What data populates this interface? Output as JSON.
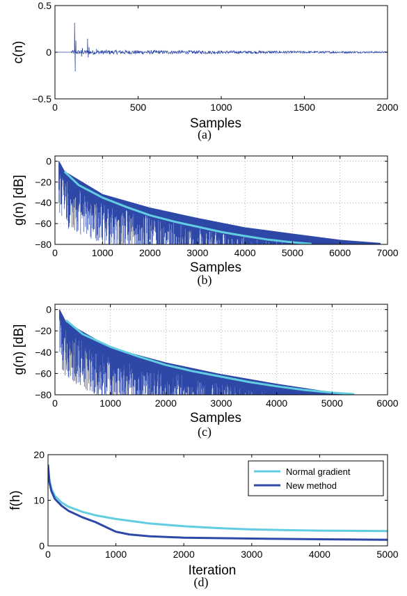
{
  "colors": {
    "dark_series": "#2e48a8",
    "light_series": "#62cde0",
    "grid": "#9a9a9a"
  },
  "chart_data": [
    {
      "type": "line",
      "caption": "(a)",
      "xlabel": "Samples",
      "ylabel": "c(n)",
      "xlim": [
        0,
        2000
      ],
      "ylim": [
        -0.5,
        0.5
      ],
      "xticks": [
        0,
        500,
        1000,
        1500,
        2000
      ],
      "yticks": [
        -0.5,
        0,
        0.5
      ],
      "ytick_labels": [
        "−0.5",
        "0",
        "0.5"
      ],
      "grid": false,
      "series": [
        {
          "color": "#2e48a8",
          "kind": "signal",
          "spikes": [
            [
              118,
              0.31
            ],
            [
              122,
              -0.2
            ],
            [
              126,
              0.12
            ],
            [
              160,
              -0.04
            ],
            [
              165,
              0.04
            ],
            [
              196,
              0.14
            ],
            [
              200,
              -0.05
            ],
            [
              205,
              0.05
            ],
            [
              250,
              0.03
            ]
          ],
          "noise_x": [
            0,
            2000
          ],
          "noise_amp_start": 0.025,
          "noise_amp_end": 0.008
        }
      ]
    },
    {
      "type": "line",
      "caption": "(b)",
      "xlabel": "Samples",
      "ylabel": "g(n) [dB]",
      "xlim": [
        0,
        7000
      ],
      "ylim": [
        -80,
        5
      ],
      "xticks": [
        0,
        1000,
        2000,
        3000,
        4000,
        5000,
        6000,
        7000
      ],
      "yticks": [
        -80,
        -60,
        -40,
        -20,
        0
      ],
      "ytick_labels": [
        "−80",
        "−60",
        "−40",
        "−20",
        "0"
      ],
      "grid": true,
      "series": [
        {
          "color": "#2e48a8",
          "kind": "decay_noise",
          "x_start": 80,
          "x_end": 6850,
          "envelope": [
            [
              80,
              0
            ],
            [
              200,
              -10
            ],
            [
              1000,
              -32
            ],
            [
              2000,
              -45
            ],
            [
              3000,
              -55
            ],
            [
              4000,
              -64
            ],
            [
              5000,
              -70
            ],
            [
              6000,
              -76
            ],
            [
              6850,
              -79
            ]
          ]
        },
        {
          "color": "#62cde0",
          "kind": "curve",
          "points": [
            [
              200,
              -10
            ],
            [
              500,
              -23
            ],
            [
              1000,
              -35
            ],
            [
              1500,
              -44
            ],
            [
              2000,
              -52
            ],
            [
              2500,
              -58
            ],
            [
              3000,
              -63
            ],
            [
              3500,
              -68
            ],
            [
              4000,
              -72
            ],
            [
              4500,
              -75.5
            ],
            [
              5000,
              -78
            ],
            [
              5400,
              -79.5
            ]
          ]
        }
      ]
    },
    {
      "type": "line",
      "caption": "(c)",
      "xlabel": "Samples",
      "ylabel": "g(n) [dB]",
      "xlim": [
        0,
        6000
      ],
      "ylim": [
        -80,
        5
      ],
      "xticks": [
        0,
        1000,
        2000,
        3000,
        4000,
        5000,
        6000
      ],
      "yticks": [
        -80,
        -60,
        -40,
        -20,
        0
      ],
      "ytick_labels": [
        "−80",
        "−60",
        "−40",
        "−20",
        "0"
      ],
      "grid": true,
      "series": [
        {
          "color": "#2e48a8",
          "kind": "decay_noise",
          "x_start": 80,
          "x_end": 5300,
          "envelope": [
            [
              80,
              0
            ],
            [
              200,
              -12
            ],
            [
              1000,
              -36
            ],
            [
              2000,
              -50
            ],
            [
              3000,
              -61
            ],
            [
              4000,
              -70
            ],
            [
              5000,
              -78
            ],
            [
              5300,
              -80
            ]
          ]
        },
        {
          "color": "#62cde0",
          "kind": "curve",
          "points": [
            [
              200,
              -10
            ],
            [
              500,
              -23
            ],
            [
              1000,
              -35
            ],
            [
              1500,
              -44
            ],
            [
              2000,
              -52
            ],
            [
              2500,
              -58
            ],
            [
              3000,
              -63
            ],
            [
              3500,
              -68
            ],
            [
              4000,
              -72
            ],
            [
              4500,
              -75.5
            ],
            [
              5000,
              -78
            ],
            [
              5400,
              -79.5
            ]
          ]
        }
      ]
    },
    {
      "type": "line",
      "caption": "(d)",
      "xlabel": "Iteration",
      "ylabel": "f(h)",
      "xlim": [
        0,
        5000
      ],
      "ylim": [
        0,
        20
      ],
      "xticks": [
        0,
        1000,
        2000,
        3000,
        4000,
        5000
      ],
      "yticks": [
        0,
        10,
        20
      ],
      "ytick_labels": [
        "0",
        "10",
        "20"
      ],
      "grid": false,
      "legend_position": "top-right",
      "series": [
        {
          "name": "Normal gradient",
          "color": "#62cde0",
          "kind": "curve",
          "points": [
            [
              0,
              17.5
            ],
            [
              20,
              14.5
            ],
            [
              50,
              12.5
            ],
            [
              100,
              11
            ],
            [
              200,
              9.5
            ],
            [
              300,
              8.6
            ],
            [
              500,
              7.5
            ],
            [
              700,
              6.7
            ],
            [
              1000,
              5.9
            ],
            [
              1500,
              4.9
            ],
            [
              2000,
              4.3
            ],
            [
              2500,
              3.9
            ],
            [
              3000,
              3.6
            ],
            [
              3500,
              3.45
            ],
            [
              4000,
              3.35
            ],
            [
              4500,
              3.3
            ],
            [
              5000,
              3.25
            ]
          ]
        },
        {
          "name": "New method",
          "color": "#2e48a8",
          "kind": "curve",
          "points": [
            [
              0,
              17.8
            ],
            [
              20,
              14
            ],
            [
              50,
              12
            ],
            [
              100,
              10.3
            ],
            [
              200,
              8.8
            ],
            [
              300,
              7.7
            ],
            [
              500,
              6.3
            ],
            [
              700,
              5.2
            ],
            [
              900,
              3.8
            ],
            [
              1000,
              3.1
            ],
            [
              1200,
              2.5
            ],
            [
              1500,
              2.1
            ],
            [
              2000,
              1.8
            ],
            [
              3000,
              1.6
            ],
            [
              4000,
              1.45
            ],
            [
              5000,
              1.35
            ]
          ]
        }
      ]
    }
  ]
}
